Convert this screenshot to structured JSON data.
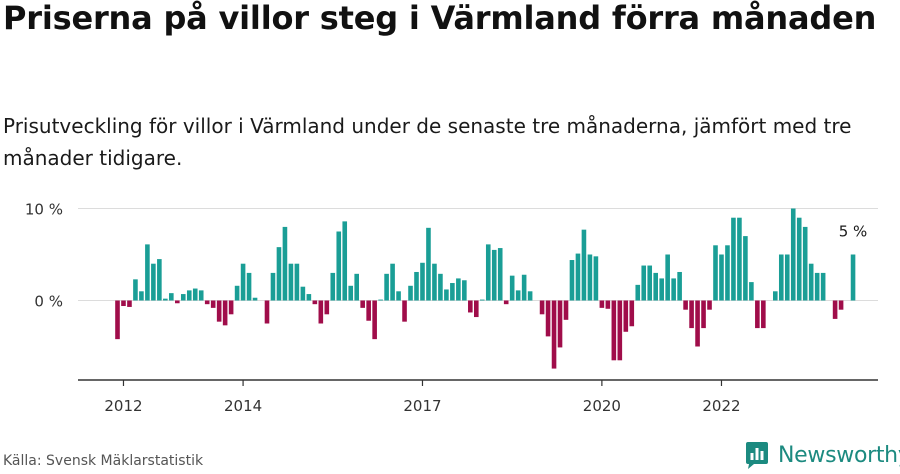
{
  "header": {
    "title": "Priserna på villor steg i Värmland förra månaden",
    "subtitle": "Prisutveckling för villor i Värmland under de senaste tre månaderna, jämfört med tre månader tidigare."
  },
  "footer": {
    "source": "Källa: Svensk Mäklarstatistik",
    "brand": "Newsworthy"
  },
  "colors": {
    "positive": "#1a9e96",
    "negative": "#a00d4a",
    "grid": "#dcdcdc",
    "axis": "#333333",
    "brand": "#1c8a80"
  },
  "chart_data": {
    "type": "bar",
    "title": "Priserna på villor steg i Värmland förra månaden",
    "ylabel": "",
    "xlabel": "",
    "ylim": [
      -8.5,
      10
    ],
    "yticks": [
      {
        "value": 0,
        "label": "0 %"
      },
      {
        "value": 10,
        "label": "10 %"
      }
    ],
    "grid": true,
    "start": "2011-12",
    "xticks": [
      {
        "index": 1,
        "label": "2012"
      },
      {
        "index": 21,
        "label": "2014"
      },
      {
        "index": 51,
        "label": "2017"
      },
      {
        "index": 81,
        "label": "2020"
      },
      {
        "index": 101,
        "label": "2022"
      }
    ],
    "last_label": "5 %",
    "values": [
      -4.2,
      -0.6,
      -0.7,
      2.3,
      1.0,
      6.1,
      4.0,
      4.5,
      0.2,
      0.8,
      -0.3,
      0.7,
      1.1,
      1.3,
      1.1,
      -0.4,
      -0.8,
      -2.3,
      -2.7,
      -1.5,
      1.6,
      4.0,
      3.0,
      0.3,
      0.0,
      -2.5,
      3.0,
      5.8,
      8.0,
      4.0,
      4.0,
      1.5,
      0.7,
      -0.4,
      -2.5,
      -1.5,
      3.0,
      7.5,
      8.6,
      1.6,
      2.9,
      -0.8,
      -2.2,
      -4.2,
      0.1,
      2.9,
      4.0,
      1.0,
      -2.3,
      1.6,
      3.1,
      4.1,
      7.9,
      4.0,
      2.9,
      1.2,
      1.9,
      2.4,
      2.2,
      -1.3,
      -1.8,
      0.1,
      6.1,
      5.5,
      5.7,
      -0.4,
      2.7,
      1.1,
      2.8,
      1.0,
      0.0,
      -1.5,
      -3.9,
      -7.4,
      -5.1,
      -2.1,
      4.4,
      5.1,
      7.7,
      5.0,
      4.8,
      -0.8,
      -0.9,
      -6.5,
      -6.5,
      -3.4,
      -2.8,
      1.7,
      3.8,
      3.8,
      3.0,
      2.4,
      5.0,
      2.4,
      3.1,
      -1.0,
      -3.0,
      -5.0,
      -3.0,
      -1.0,
      6.0,
      5.0,
      6.0,
      9.0,
      9.0,
      7.0,
      2.0,
      -3.0,
      -3.0,
      0.0,
      1.0,
      5.0,
      5.0,
      10.0,
      9.0,
      8.0,
      4.0,
      3.0,
      3.0,
      0.0,
      -2.0,
      -1.0,
      0.0,
      5.0
    ]
  }
}
